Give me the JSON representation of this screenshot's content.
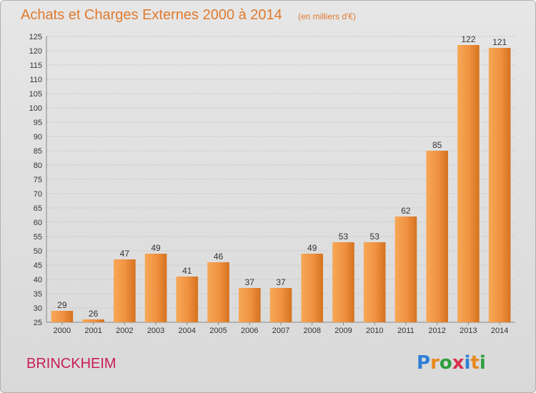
{
  "chart_data": {
    "type": "bar",
    "title": "Achats et Charges Externes 2000 à 2014",
    "subtitle": "(en milliers d'€)",
    "categories": [
      "2000",
      "2001",
      "2002",
      "2003",
      "2004",
      "2005",
      "2006",
      "2007",
      "2008",
      "2009",
      "2010",
      "2011",
      "2012",
      "2013",
      "2014"
    ],
    "values": [
      29,
      26,
      47,
      49,
      41,
      46,
      37,
      37,
      49,
      53,
      53,
      62,
      85,
      122,
      121
    ],
    "ylim": [
      25,
      125
    ],
    "yticks": [
      25,
      30,
      35,
      40,
      45,
      50,
      55,
      60,
      65,
      70,
      75,
      80,
      85,
      90,
      95,
      100,
      105,
      110,
      115,
      120,
      125
    ],
    "grid": true,
    "bar_color": "#f0923a"
  },
  "footer": {
    "place": "BRINCKHEIM",
    "logo_letters": [
      "P",
      "r",
      "o",
      "x",
      "i",
      "t",
      "i"
    ],
    "logo_colors": [
      "#2e7fd6",
      "#e8891f",
      "#2e9e3e",
      "#d6304e",
      "#2e7fd6",
      "#e8891f",
      "#2e9e3e"
    ]
  }
}
